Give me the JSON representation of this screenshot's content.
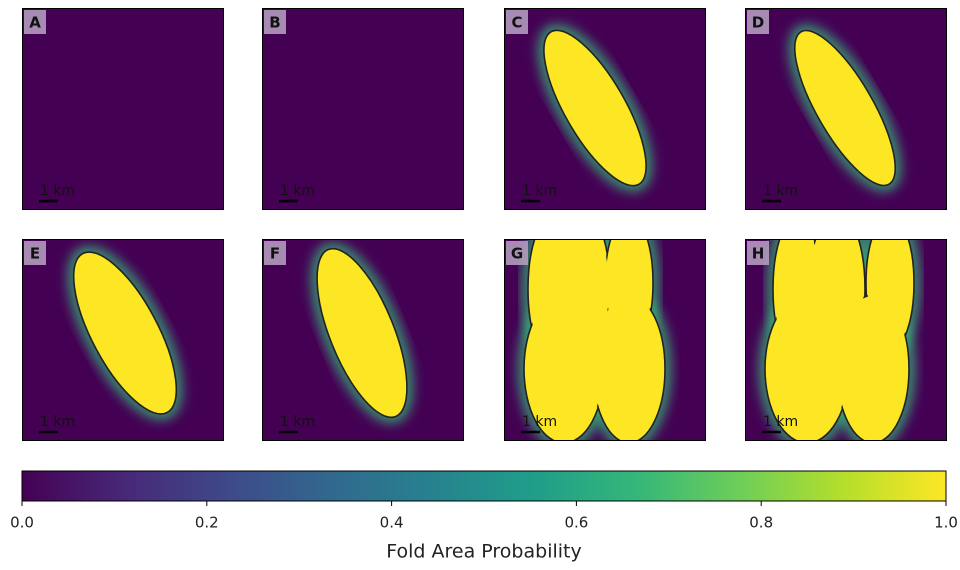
{
  "chart_data": {
    "type": "colorbar",
    "panels": [
      {
        "label": "A",
        "scale_bar": "1 km"
      },
      {
        "label": "B",
        "scale_bar": "1 km"
      },
      {
        "label": "C",
        "scale_bar": "1 km"
      },
      {
        "label": "D",
        "scale_bar": "1 km"
      },
      {
        "label": "E",
        "scale_bar": "1 km"
      },
      {
        "label": "F",
        "scale_bar": "1 km"
      },
      {
        "label": "G",
        "scale_bar": "1 km"
      },
      {
        "label": "H",
        "scale_bar": "1 km"
      }
    ],
    "label": "Fold Area Probability",
    "xlim": [
      0,
      1
    ],
    "xticks": [
      {
        "value": 0,
        "label": "0.0"
      },
      0.2,
      0.4,
      0.6,
      0.8,
      {
        "value": 1,
        "label": "1.0"
      }
    ],
    "colormap": [
      "#440154",
      "#482878",
      "#3e4989",
      "#31688e",
      "#26828e",
      "#1f9e89",
      "#35b779",
      "#6ece58",
      "#b5de2b",
      "#fde725"
    ]
  }
}
